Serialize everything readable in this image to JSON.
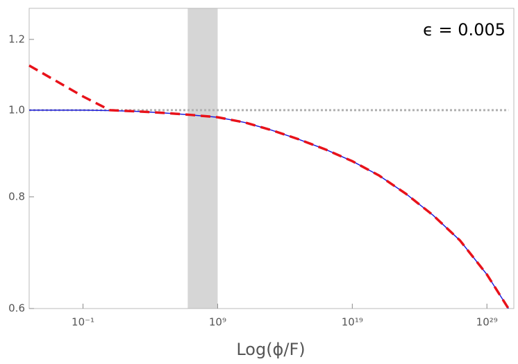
{
  "chart_data": {
    "type": "line",
    "annotation": "ϵ = 0.005",
    "x_label": "Log(ϕ/F)",
    "x": [
      1e-05,
      0.1,
      10.0,
      1000.0,
      100000.0,
      10000000.0,
      1000000000.0,
      100000000000.0,
      10000000000000.0,
      1000000000000000.0,
      1e+17,
      1e+19,
      1e+21,
      1e+23,
      1e+25,
      1e+27,
      1e+29,
      4e+30
    ],
    "series": [
      {
        "color": "#b0b0b0",
        "dash": "dotted",
        "values": [
          1,
          1,
          1,
          1,
          1,
          1,
          1,
          1,
          1,
          1,
          1,
          1,
          1,
          1,
          1,
          1,
          1,
          1
        ]
      },
      {
        "color": "#1a1adc",
        "dash": "solid",
        "values": [
          1.0,
          1.0,
          0.999,
          0.997,
          0.993,
          0.988,
          0.982,
          0.969,
          0.95,
          0.928,
          0.904,
          0.877,
          0.845,
          0.806,
          0.763,
          0.715,
          0.655,
          0.6
        ]
      },
      {
        "color": "#e8121a",
        "dash": "dashed",
        "values": [
          1.122,
          1.036,
          1.0,
          0.997,
          0.993,
          0.988,
          0.982,
          0.969,
          0.95,
          0.928,
          0.904,
          0.877,
          0.845,
          0.806,
          0.763,
          0.715,
          0.655,
          0.6
        ]
      }
    ],
    "band": {
      "xlim": [
        6000000.0,
        1000000000.0
      ],
      "color": "#d6d6d6"
    },
    "xscale": "log",
    "yscale": "log",
    "xlim": [
      1e-05,
      1e+31
    ],
    "xticks": [
      {
        "value": 0.1,
        "label": "10⁻¹"
      },
      {
        "value": 1000000000.0,
        "label": "10⁹"
      },
      {
        "value": 1e+19,
        "label": "10¹⁹"
      },
      {
        "value": 1e+29,
        "label": "10²⁹"
      }
    ],
    "ylim": [
      0.6,
      1.3
    ],
    "yticks": [
      0.6,
      0.8,
      {
        "value": 1,
        "label": "1.0"
      },
      1.2
    ]
  }
}
